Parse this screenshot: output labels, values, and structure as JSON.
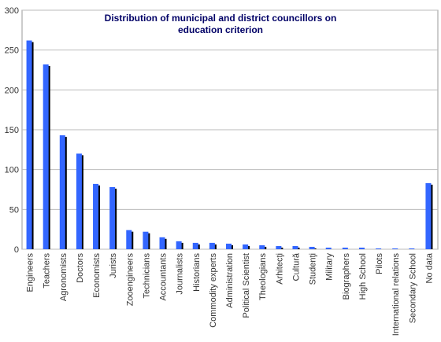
{
  "chart_data": {
    "type": "bar",
    "title": "Distribution of municipal and district councillors on education criterion",
    "categories": [
      "Engineers",
      "Teachers",
      "Agronomists",
      "Doctors",
      "Economists",
      "Jurists",
      "Zooengineers",
      "Technicians",
      "Accountants",
      "Journalists",
      "Historians",
      "Commodity experts",
      "Administration",
      "Political Scientist",
      "Theologians",
      "Arhitecţi",
      "Cultură",
      "Studenţi",
      "Military",
      "Biographers",
      "High School",
      "Pilots",
      "International relations",
      "Secondary School",
      "No data"
    ],
    "values": [
      262,
      232,
      143,
      120,
      82,
      78,
      24,
      22,
      15,
      10,
      8,
      8,
      7,
      6,
      5,
      4,
      4,
      3,
      2,
      2,
      2,
      1,
      1,
      1,
      83
    ],
    "color": "#3366ff",
    "ylim": [
      0,
      300
    ],
    "yticks": [
      0,
      50,
      100,
      150,
      200,
      250,
      300
    ],
    "grid": true
  }
}
